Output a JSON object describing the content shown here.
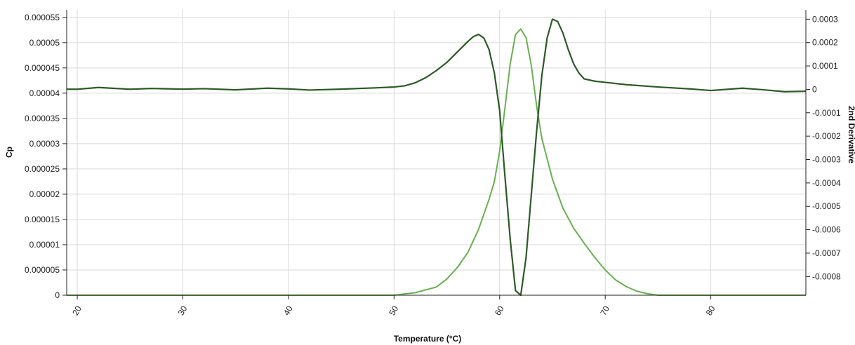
{
  "chart_data": {
    "type": "line",
    "title": "",
    "xlabel": "Temperature (°C)",
    "ylabel_left": "Cp",
    "ylabel_right": "2nd Derivative",
    "xlim": [
      19,
      89
    ],
    "ylim_left": [
      0,
      5.65e-05
    ],
    "ylim_right": [
      -0.00088,
      0.00034
    ],
    "x_ticks": [
      20,
      30,
      40,
      50,
      60,
      70,
      80
    ],
    "x_tick_labels": [
      "20",
      "30",
      "40",
      "50",
      "60",
      "70",
      "80"
    ],
    "y_left_ticks": [
      0,
      5e-06,
      1e-05,
      1.5e-05,
      2e-05,
      2.5e-05,
      3e-05,
      3.5e-05,
      4e-05,
      4.5e-05,
      5e-05,
      5.5e-05
    ],
    "y_left_tick_labels": [
      "0",
      "0.000005",
      "0.00001",
      "0.000015",
      "0.00002",
      "0.000025",
      "0.00003",
      "0.000035",
      "0.00004",
      "0.000045",
      "0.00005",
      "0.000055"
    ],
    "y_right_ticks": [
      0.0003,
      0.0002,
      0.0001,
      0,
      -0.0001,
      -0.0002,
      -0.0003,
      -0.0004,
      -0.0005,
      -0.0006,
      -0.0007,
      -0.0008
    ],
    "y_right_tick_labels": [
      "0.0003",
      "0.0002",
      "0.0001",
      "0",
      "-0.0001",
      "-0.0002",
      "-0.0003",
      "-0.0004",
      "-0.0005",
      "-0.0006",
      "-0.0007",
      "-0.0008"
    ],
    "grid": true,
    "legend": "none",
    "series": [
      {
        "axis": "left",
        "color": "#6aaf52",
        "x": [
          19,
          25,
          30,
          35,
          40,
          45,
          50,
          52,
          54,
          55,
          56,
          57,
          58,
          59,
          59.5,
          60,
          60.5,
          61,
          61.5,
          62,
          62.5,
          63,
          63.5,
          64,
          65,
          66,
          67,
          68,
          69,
          70,
          71,
          72,
          73,
          74,
          75,
          76,
          80,
          85,
          89
        ],
        "y": [
          0,
          0,
          0,
          0,
          0,
          0,
          0,
          5e-07,
          1.6e-06,
          3.2e-06,
          5.5e-06,
          8.5e-06,
          1.3e-05,
          1.9e-05,
          2.25e-05,
          2.85e-05,
          3.7e-05,
          4.58e-05,
          5.16e-05,
          5.27e-05,
          5.1e-05,
          4.55e-05,
          3.75e-05,
          3.1e-05,
          2.3e-05,
          1.72e-05,
          1.33e-05,
          1.03e-05,
          7.5e-06,
          5e-06,
          3e-06,
          1.7e-06,
          8e-07,
          3e-07,
          0,
          0,
          0,
          0,
          0
        ]
      },
      {
        "axis": "right",
        "color": "#2d5a27",
        "x": [
          19,
          20,
          22,
          25,
          27,
          30,
          32,
          35,
          38,
          40,
          42,
          45,
          48,
          50,
          51,
          52,
          53,
          54,
          55,
          56,
          57,
          57.5,
          58,
          58.5,
          59,
          59.5,
          60,
          60.5,
          61,
          61.5,
          62,
          62.5,
          63,
          63.5,
          64,
          64.5,
          65,
          65.5,
          66,
          66.5,
          67,
          67.5,
          68,
          69,
          70,
          72,
          75,
          78,
          80,
          83,
          85,
          87,
          89
        ],
        "y": [
          5e-07,
          5e-07,
          8e-06,
          5e-07,
          4e-06,
          1e-06,
          3e-06,
          -2e-06,
          5e-06,
          2e-06,
          -3e-06,
          1e-06,
          6e-06,
          1e-05,
          1.5e-05,
          2.8e-05,
          5e-05,
          8e-05,
          0.000115,
          0.00016,
          0.000205,
          0.000225,
          0.000235,
          0.00022,
          0.00017,
          7e-05,
          -9e-05,
          -0.00037,
          -0.00064,
          -0.00086,
          -0.00088,
          -0.00072,
          -0.00045,
          -0.00018,
          6e-05,
          0.00022,
          0.0003,
          0.00029,
          0.00024,
          0.00017,
          0.00011,
          7e-05,
          4.5e-05,
          3.5e-05,
          3e-05,
          2e-05,
          1e-05,
          2e-06,
          -5e-06,
          5e-06,
          -2e-06,
          -1e-05,
          -8e-06
        ]
      }
    ]
  }
}
